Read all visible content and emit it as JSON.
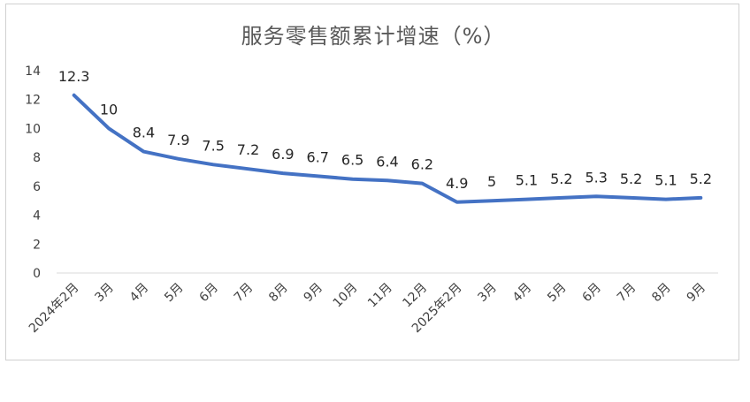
{
  "chart_data": {
    "type": "line",
    "title": "服务零售额累计增速（%）",
    "categories": [
      "2024年2月",
      "3月",
      "4月",
      "5月",
      "6月",
      "7月",
      "8月",
      "9月",
      "10月",
      "11月",
      "12月",
      "2025年2月",
      "3月",
      "4月",
      "5月",
      "6月",
      "7月",
      "8月",
      "9月"
    ],
    "data_labels": [
      "12.3",
      "10",
      "8.4",
      "7.9",
      "7.5",
      "7.2",
      "6.9",
      "6.7",
      "6.5",
      "6.4",
      "6.2",
      "4.9",
      "5",
      "5.1",
      "5.2",
      "5.3",
      "5.2",
      "5.1",
      "5.2"
    ],
    "values": [
      12.3,
      10,
      8.4,
      7.9,
      7.5,
      7.2,
      6.9,
      6.7,
      6.5,
      6.4,
      6.2,
      4.9,
      5,
      5.1,
      5.2,
      5.3,
      5.2,
      5.1,
      5.2
    ],
    "yticks": [
      "0",
      "2",
      "4",
      "6",
      "8",
      "10",
      "12",
      "14"
    ],
    "ylim": [
      0,
      14
    ],
    "grid": false,
    "line_color": "#4472C4"
  }
}
